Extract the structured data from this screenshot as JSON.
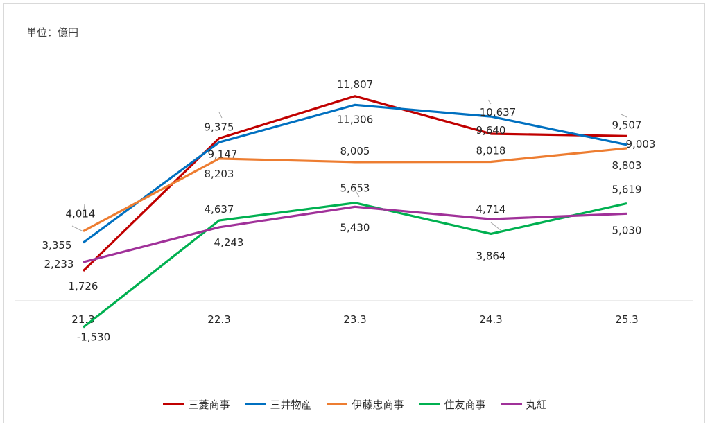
{
  "unit_label": "単位：億円",
  "chart_data": {
    "type": "line",
    "categories": [
      "21.3",
      "22.3",
      "23.3",
      "24.3",
      "25.3"
    ],
    "ylim": [
      -1800,
      12200
    ],
    "grid": false,
    "legend_position": "bottom",
    "series": [
      {
        "name": "三菱商事",
        "color": "#C00000",
        "values": [
          1726,
          9375,
          11807,
          9640,
          9507
        ],
        "labels": [
          "1,726",
          "9,375",
          "11,807",
          "9,640",
          "9,507"
        ]
      },
      {
        "name": "三井物産",
        "color": "#0070C0",
        "values": [
          3355,
          9147,
          11306,
          10637,
          9003
        ],
        "labels": [
          "3,355",
          "9,147",
          "11,306",
          "10,637",
          "9,003"
        ]
      },
      {
        "name": "伊藤忠商事",
        "color": "#ED7D31",
        "values": [
          4014,
          8203,
          8005,
          8018,
          8803
        ],
        "labels": [
          "4,014",
          "8,203",
          "8,005",
          "8,018",
          "8,803"
        ]
      },
      {
        "name": "住友商事",
        "color": "#00B050",
        "values": [
          -1530,
          4637,
          5653,
          3864,
          5619
        ],
        "labels": [
          "-1,530",
          "4,637",
          "5,653",
          "3,864",
          "5,619"
        ],
        "negative_label_color": "#FF0000"
      },
      {
        "name": "丸紅",
        "color": "#A03199",
        "values": [
          2233,
          4243,
          5430,
          4714,
          5030
        ],
        "labels": [
          "2,233",
          "4,243",
          "5,430",
          "4,714",
          "5,030"
        ]
      }
    ]
  }
}
